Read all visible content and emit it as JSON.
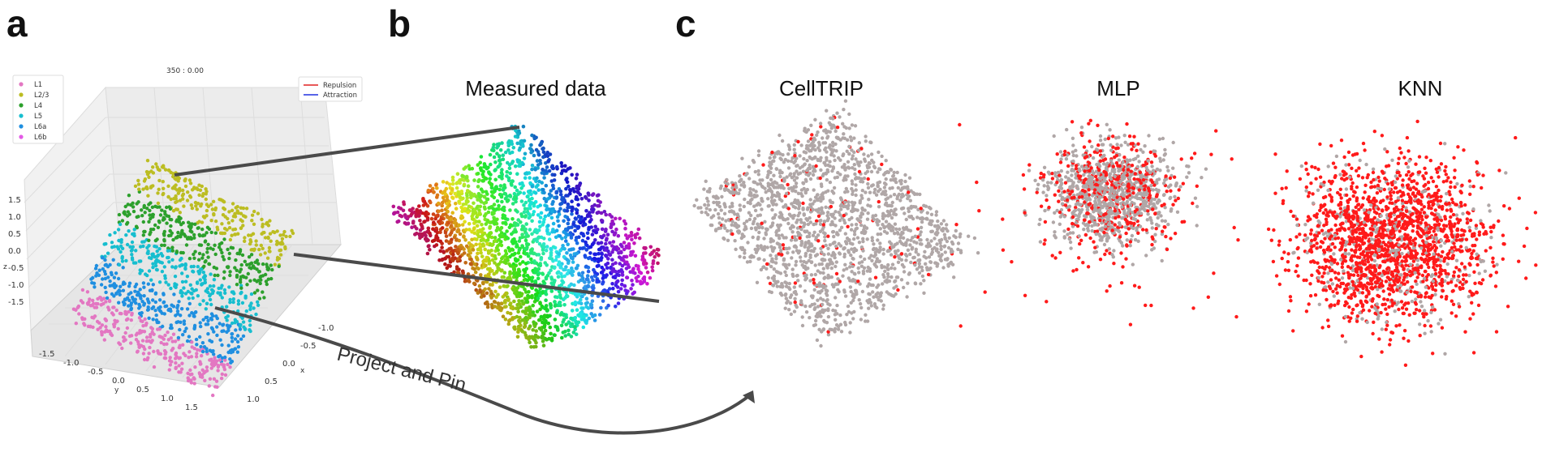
{
  "panel_labels": {
    "a": "a",
    "b": "b",
    "c": "c"
  },
  "panel_a": {
    "header_text": "350 :  0.00",
    "legend_layers": [
      {
        "label": "L1",
        "color": "#e377c2"
      },
      {
        "label": "L2/3",
        "color": "#bcbd22"
      },
      {
        "label": "L4",
        "color": "#2ca02c"
      },
      {
        "label": "L5",
        "color": "#17becf"
      },
      {
        "label": "L6a",
        "color": "#1f8fe0"
      },
      {
        "label": "L6b",
        "color": "#e35ae6"
      }
    ],
    "legend_forces": [
      {
        "label": "Repulsion",
        "color": "#e02020"
      },
      {
        "label": "Attraction",
        "color": "#2030e0"
      }
    ],
    "z_ticks": [
      "1.5",
      "1.0",
      "0.5",
      "0.0",
      "-0.5",
      "-1.0",
      "-1.5"
    ],
    "z_label": "z",
    "y_ticks": [
      "-1.5",
      "-1.0",
      "-0.5",
      "0.0",
      "0.5",
      "1.0",
      "1.5"
    ],
    "y_label": "y",
    "x_ticks": [
      "-1.0",
      "-0.5",
      "0.0",
      "0.5",
      "1.0"
    ],
    "x_label": "x"
  },
  "panel_b": {
    "title": "Measured data"
  },
  "arrow_label": "Project and Pin",
  "panel_c": [
    {
      "title": "CellTRIP",
      "title_color": "#e8231a"
    },
    {
      "title": "MLP",
      "title_color": "#111111"
    },
    {
      "title": "KNN",
      "title_color": "#111111"
    }
  ],
  "colors": {
    "gray_point": "#b0a7a7",
    "red_point": "#ff1a1a",
    "arrow": "#4a4a4a"
  }
}
